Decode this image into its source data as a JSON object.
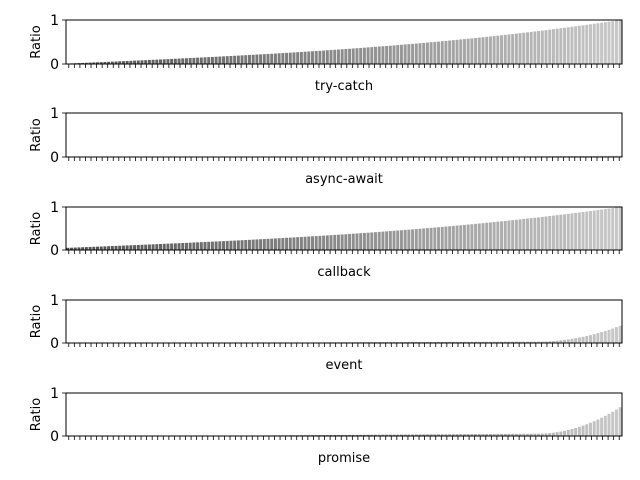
{
  "chart_data": [
    {
      "type": "bar",
      "xlabel": "try-catch",
      "ylabel": "Ratio",
      "ylim": [
        0,
        1
      ],
      "yticks": [
        "0",
        "1"
      ],
      "n_bars": 150,
      "shape": "monotonic-increasing",
      "values_range": [
        0.01,
        1.0
      ],
      "shading": "dark-to-light gray"
    },
    {
      "type": "bar",
      "xlabel": "async-await",
      "ylabel": "Ratio",
      "ylim": [
        0,
        1
      ],
      "yticks": [
        "0",
        "1"
      ],
      "n_bars": 150,
      "shape": "near-zero",
      "values_range": [
        0.0,
        0.03
      ],
      "shading": "dark-to-light gray"
    },
    {
      "type": "bar",
      "xlabel": "callback",
      "ylabel": "Ratio",
      "ylim": [
        0,
        1
      ],
      "yticks": [
        "0",
        "1"
      ],
      "n_bars": 150,
      "shape": "monotonic-increasing",
      "values_range": [
        0.05,
        1.0
      ],
      "shading": "dark-to-light gray"
    },
    {
      "type": "bar",
      "xlabel": "event",
      "ylabel": "Ratio",
      "ylim": [
        0,
        1
      ],
      "yticks": [
        "0",
        "1"
      ],
      "n_bars": 150,
      "shape": "mostly-zero-rising-tail",
      "values_range": [
        0.0,
        0.4
      ],
      "shading": "dark-to-light gray"
    },
    {
      "type": "bar",
      "xlabel": "promise",
      "ylabel": "Ratio",
      "ylim": [
        0,
        1
      ],
      "yticks": [
        "0",
        "1"
      ],
      "n_bars": 150,
      "shape": "mostly-zero-rising-tail",
      "values_range": [
        0.0,
        0.67
      ],
      "shading": "dark-to-light gray"
    }
  ]
}
